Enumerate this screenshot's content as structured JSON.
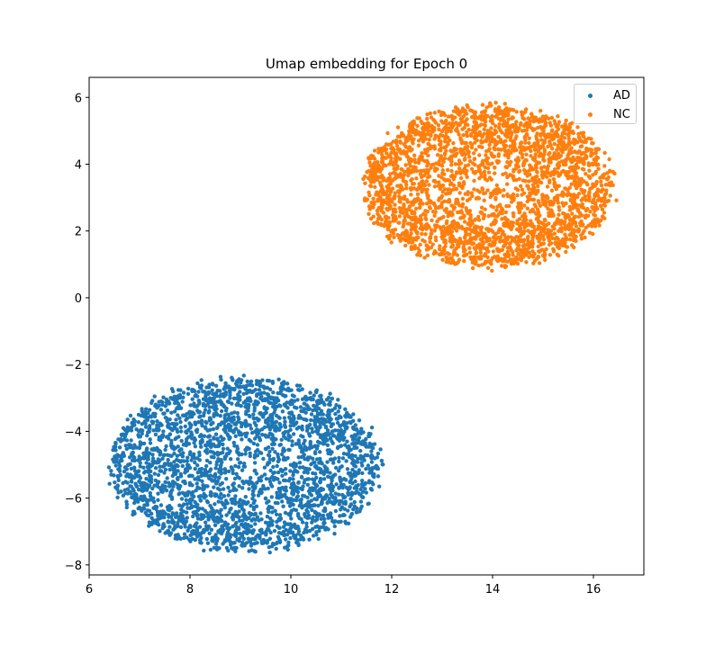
{
  "chart_data": {
    "type": "scatter",
    "title": "Umap embedding for Epoch 0",
    "xlabel": "",
    "ylabel": "",
    "xlim": [
      6.0,
      17.0
    ],
    "ylim": [
      -8.3,
      6.6
    ],
    "xticks": [
      6,
      8,
      10,
      12,
      14,
      16
    ],
    "yticks": [
      -8,
      -6,
      -4,
      -2,
      0,
      2,
      4,
      6
    ],
    "xtick_labels": [
      "6",
      "8",
      "10",
      "12",
      "14",
      "16"
    ],
    "ytick_labels": [
      "−8",
      "−6",
      "−4",
      "−2",
      "0",
      "2",
      "4",
      "6"
    ],
    "grid": false,
    "legend_position": "upper right",
    "series": [
      {
        "name": "AD",
        "color": "#1f77b4",
        "cluster": {
          "center": [
            9.1,
            -5.0
          ],
          "x_range": [
            6.3,
            11.9
          ],
          "y_range": [
            -7.6,
            -2.2
          ]
        }
      },
      {
        "name": "NC",
        "color": "#ff7f0e",
        "cluster": {
          "center": [
            13.9,
            3.35
          ],
          "x_range": [
            11.3,
            16.5
          ],
          "y_range": [
            0.8,
            5.9
          ]
        }
      }
    ]
  }
}
